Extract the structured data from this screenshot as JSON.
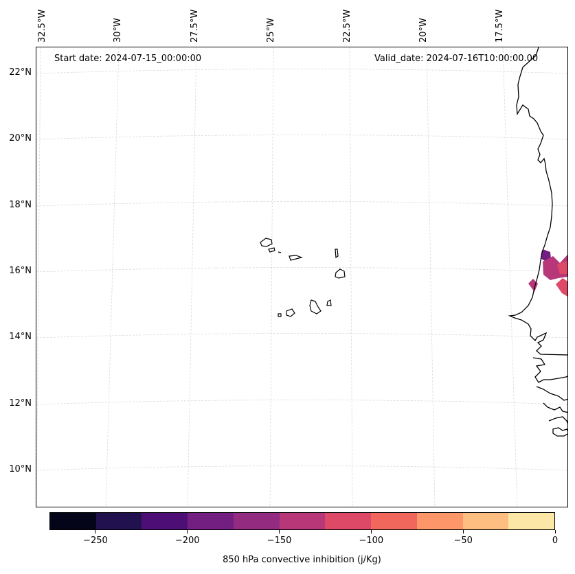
{
  "header": {
    "start_date": "Start date: 2024-07-15_00:00:00",
    "valid_date": "Valid_date: 2024-07-16T10:00:00.00"
  },
  "longitude_labels": [
    "32.5°W",
    "30°W",
    "27.5°W",
    "25°W",
    "22.5°W",
    "20°W",
    "17.5°W"
  ],
  "latitude_labels": [
    "22°N",
    "20°N",
    "18°N",
    "16°N",
    "14°N",
    "12°N",
    "10°N"
  ],
  "colorbar": {
    "title": "850 hPa convective inhibition (j/Kg)",
    "tick_labels": [
      "−250",
      "−200",
      "−150",
      "−100",
      "−50",
      "0"
    ],
    "colors": [
      "#05051a",
      "#21114e",
      "#4d0f76",
      "#721f81",
      "#932b80",
      "#b73779",
      "#de4968",
      "#f2675b",
      "#fd9668",
      "#febd81",
      "#fde7a6"
    ]
  },
  "field_colors": {
    "deep": "#721f81",
    "mid": "#b73779",
    "high": "#de4968"
  }
}
